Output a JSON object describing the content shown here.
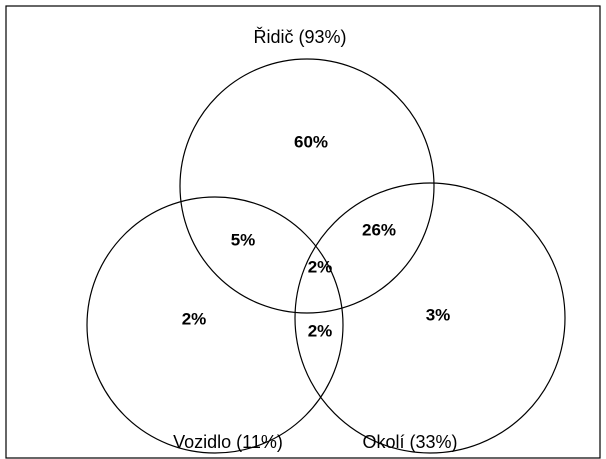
{
  "sets": [
    {
      "label": "Řidič (93%)"
    },
    {
      "label": "Vozidlo (11%)"
    },
    {
      "label": "Okolí (33%)"
    }
  ],
  "regions": [
    {
      "label": "60%"
    },
    {
      "label": "5%"
    },
    {
      "label": "26%"
    },
    {
      "label": "2%"
    },
    {
      "label": "2%"
    },
    {
      "label": "2%"
    },
    {
      "label": "3%"
    }
  ]
}
